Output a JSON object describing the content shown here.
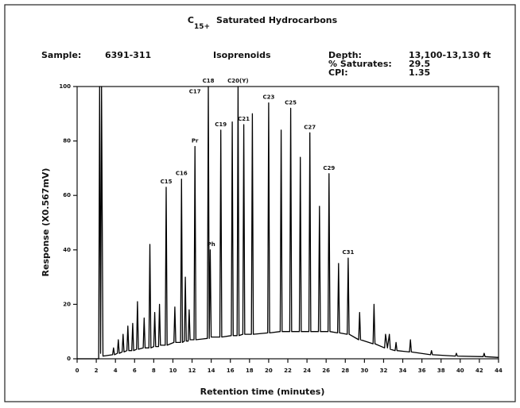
{
  "chart_data": {
    "type": "line",
    "title_main": "C",
    "title_subscript": "15+",
    "title_rest": "Saturated Hydrocarbons",
    "sample_label": "Sample:",
    "sample": "6391-311",
    "group": "Isoprenoids",
    "info": [
      {
        "label": "Depth:",
        "value": "13,100-13,130 ft"
      },
      {
        "label": "% Saturates:",
        "value": "29.5"
      },
      {
        "label": "CPI:",
        "value": "1.35"
      }
    ],
    "xlabel": "Retention time (minutes)",
    "ylabel": "Response (X0.567mV)",
    "xlim": [
      0,
      44
    ],
    "ylim": [
      0,
      100
    ],
    "xticks": [
      0,
      2,
      4,
      6,
      8,
      10,
      12,
      14,
      16,
      18,
      20,
      22,
      24,
      26,
      28,
      30,
      32,
      34,
      36,
      38,
      40,
      42,
      44
    ],
    "yticks": [
      0,
      20,
      40,
      60,
      80,
      100
    ],
    "color": "#000000",
    "x": [
      0,
      2.25,
      2.35,
      2.45,
      2.55,
      2.7,
      3.7,
      3.8,
      3.9,
      4.2,
      4.3,
      4.4,
      4.7,
      4.8,
      4.9,
      5.2,
      5.3,
      5.4,
      5.7,
      5.8,
      5.9,
      6.2,
      6.3,
      6.4,
      6.9,
      7.0,
      7.1,
      7.5,
      7.6,
      7.7,
      8.0,
      8.1,
      8.2,
      8.5,
      8.6,
      8.7,
      9.2,
      9.3,
      9.4,
      10.1,
      10.2,
      10.3,
      10.8,
      10.9,
      11.0,
      11.2,
      11.3,
      11.4,
      11.6,
      11.7,
      11.8,
      12.2,
      12.3,
      12.4,
      13.6,
      13.7,
      13.8,
      13.9,
      14.0,
      14.9,
      15.0,
      15.1,
      16.1,
      16.2,
      16.3,
      16.7,
      16.8,
      16.9,
      17.3,
      17.4,
      17.5,
      18.2,
      18.3,
      18.4,
      19.9,
      20.0,
      20.1,
      21.2,
      21.3,
      21.4,
      22.2,
      22.3,
      22.4,
      23.2,
      23.3,
      23.4,
      24.2,
      24.3,
      24.4,
      25.2,
      25.3,
      25.4,
      26.2,
      26.3,
      26.4,
      27.2,
      27.3,
      27.4,
      28.2,
      28.3,
      28.4,
      29.4,
      29.5,
      29.6,
      30.9,
      31.0,
      31.1,
      32.1,
      32.2,
      32.4,
      32.6,
      32.7,
      33.2,
      33.3,
      33.4,
      34.7,
      34.8,
      34.9,
      36.9,
      37.0,
      37.1,
      39.5,
      39.6,
      39.7,
      42.4,
      42.5,
      42.6,
      44
    ],
    "values": [
      0,
      0,
      100,
      2,
      100,
      1,
      1.5,
      4,
      1.5,
      2,
      7,
      2,
      2.5,
      9,
      2.5,
      3,
      12,
      3,
      3,
      13,
      3,
      3.5,
      21,
      3.5,
      4,
      15,
      4,
      4,
      42,
      4,
      4.5,
      17,
      4.5,
      4.5,
      20,
      5,
      5,
      63,
      5,
      6,
      19,
      6,
      6,
      66,
      6,
      6.5,
      30,
      6.5,
      6.5,
      18,
      7,
      7,
      78,
      7,
      7.5,
      100,
      7.5,
      40,
      8,
      8,
      84,
      8,
      8.5,
      87,
      8.5,
      8.5,
      100,
      8.5,
      9,
      86,
      9,
      9,
      90,
      9,
      9.5,
      94,
      9.5,
      10,
      84,
      10,
      10,
      92,
      10,
      10,
      74,
      10,
      10,
      83,
      10,
      10,
      56,
      10,
      10,
      68,
      10,
      9.5,
      35,
      9.5,
      9,
      37,
      9,
      7,
      17,
      7,
      5.5,
      20,
      5.5,
      4,
      9,
      4,
      9,
      3.5,
      3,
      6,
      3,
      2.5,
      7,
      2.5,
      1.5,
      3,
      1.5,
      1,
      2,
      1,
      0.8,
      2,
      0.8,
      0.5
    ],
    "annotations": [
      {
        "text": "C15",
        "x": 9.3,
        "y": 63
      },
      {
        "text": "C16",
        "x": 10.9,
        "y": 66
      },
      {
        "text": "Pr",
        "x": 12.3,
        "y": 78
      },
      {
        "text": "C17",
        "x": 12.3,
        "y": 96
      },
      {
        "text": "C18",
        "x": 13.7,
        "y": 100
      },
      {
        "text": "Ph",
        "x": 14.0,
        "y": 40
      },
      {
        "text": "C19",
        "x": 15.0,
        "y": 84
      },
      {
        "text": "C20(Y)",
        "x": 16.8,
        "y": 100
      },
      {
        "text": "C21",
        "x": 17.4,
        "y": 86
      },
      {
        "text": "C23",
        "x": 20.0,
        "y": 94
      },
      {
        "text": "C25",
        "x": 22.3,
        "y": 92
      },
      {
        "text": "C27",
        "x": 24.3,
        "y": 83
      },
      {
        "text": "C29",
        "x": 26.3,
        "y": 68
      },
      {
        "text": "C31",
        "x": 28.3,
        "y": 37
      }
    ]
  }
}
